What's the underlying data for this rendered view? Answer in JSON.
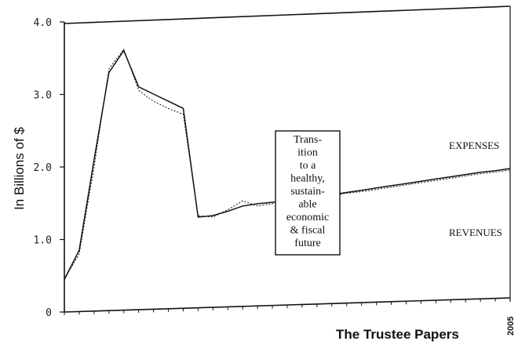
{
  "chart_data": {
    "type": "line",
    "title": "",
    "ylabel": "In Billions of $",
    "caption": "The Trustee Papers",
    "xlabel": "",
    "x_end_label": "2005",
    "ylim": [
      0,
      4.0
    ],
    "yticks": [
      "0",
      "1.0",
      "2.0",
      "3.0",
      "4.0"
    ],
    "grid": false,
    "x": [
      0,
      1,
      2,
      3,
      4,
      5,
      6,
      7,
      8,
      9,
      10,
      11,
      12,
      13,
      14,
      15,
      16,
      17,
      18,
      19,
      20,
      21,
      22,
      23,
      24,
      25,
      26,
      27,
      28,
      29,
      30
    ],
    "series": [
      {
        "name": "EXPENSES",
        "values": [
          0.45,
          0.85,
          2.1,
          3.3,
          3.6,
          3.1,
          3.0,
          2.9,
          2.8,
          1.3,
          1.32,
          1.38,
          1.45,
          1.48,
          1.5,
          1.52,
          1.55,
          1.58,
          1.6,
          1.63,
          1.66,
          1.69,
          1.72,
          1.75,
          1.78,
          1.81,
          1.84,
          1.87,
          1.9,
          1.92,
          1.95
        ]
      },
      {
        "name": "REVENUES",
        "values": [
          0.45,
          0.8,
          2.0,
          3.35,
          3.62,
          3.05,
          2.9,
          2.8,
          2.72,
          1.32,
          1.3,
          1.4,
          1.52,
          1.45,
          1.48,
          1.5,
          1.53,
          1.56,
          1.59,
          1.62,
          1.64,
          1.67,
          1.7,
          1.73,
          1.76,
          1.79,
          1.82,
          1.85,
          1.88,
          1.9,
          1.93
        ]
      }
    ],
    "annotation": [
      "Trans-",
      "ition",
      "to a",
      "healthy,",
      "sustain-",
      "able",
      "economic",
      "& fiscal",
      "future"
    ]
  }
}
